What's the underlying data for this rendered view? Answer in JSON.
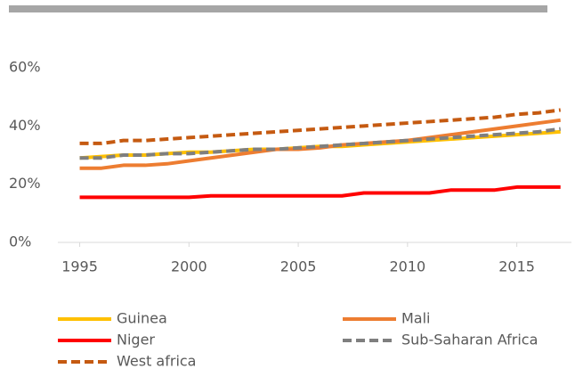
{
  "chart_data": {
    "type": "line",
    "x": [
      1995,
      1996,
      1997,
      1998,
      1999,
      2000,
      2001,
      2002,
      2003,
      2004,
      2005,
      2006,
      2007,
      2008,
      2009,
      2010,
      2011,
      2012,
      2013,
      2014,
      2015,
      2016,
      2017
    ],
    "xlim": [
      1994,
      2017.5
    ],
    "xticks": [
      1995,
      2000,
      2005,
      2010,
      2015
    ],
    "ylim": [
      0,
      60
    ],
    "yticks": [
      {
        "value": 0,
        "label": "0%"
      },
      {
        "value": 20,
        "label": "20%"
      },
      {
        "value": 40,
        "label": "40%"
      },
      {
        "value": 60,
        "label": "60%"
      }
    ],
    "series": [
      {
        "name": "Guinea",
        "color": "#FFC000",
        "dashed": false,
        "values": [
          29,
          29.5,
          30,
          30,
          30.5,
          31,
          31,
          31.5,
          32,
          32,
          32.5,
          33,
          33,
          33.5,
          34,
          34.5,
          35,
          35.5,
          36,
          36.5,
          37,
          37.5,
          38
        ]
      },
      {
        "name": "Mali",
        "color": "#ED7D31",
        "dashed": false,
        "values": [
          25.5,
          25.5,
          26.5,
          26.5,
          27,
          28,
          29,
          30,
          31,
          32,
          32,
          32.5,
          33.5,
          34,
          34.5,
          35,
          36,
          37,
          38,
          39,
          40,
          41,
          42
        ]
      },
      {
        "name": "Niger",
        "color": "#FF0000",
        "dashed": false,
        "values": [
          15.5,
          15.5,
          15.5,
          15.5,
          15.5,
          15.5,
          16,
          16,
          16,
          16,
          16,
          16,
          16,
          17,
          17,
          17,
          17,
          18,
          18,
          18,
          19,
          19,
          19
        ]
      },
      {
        "name": "Sub-Saharan Africa",
        "color": "#7F7F7F",
        "dashed": true,
        "values": [
          29,
          29,
          30,
          30,
          30.5,
          30.5,
          31,
          31.5,
          32,
          32,
          32.5,
          33,
          33.5,
          34,
          34.5,
          35,
          35.5,
          36,
          36.5,
          37,
          37.5,
          38,
          39
        ]
      },
      {
        "name": "West africa",
        "color": "#C55A11",
        "dashed": true,
        "values": [
          34,
          34,
          35,
          35,
          35.5,
          36,
          36.5,
          37,
          37.5,
          38,
          38.5,
          39,
          39.5,
          40,
          40.5,
          41,
          41.5,
          42,
          42.5,
          43,
          44,
          44.5,
          45.5
        ]
      }
    ]
  }
}
